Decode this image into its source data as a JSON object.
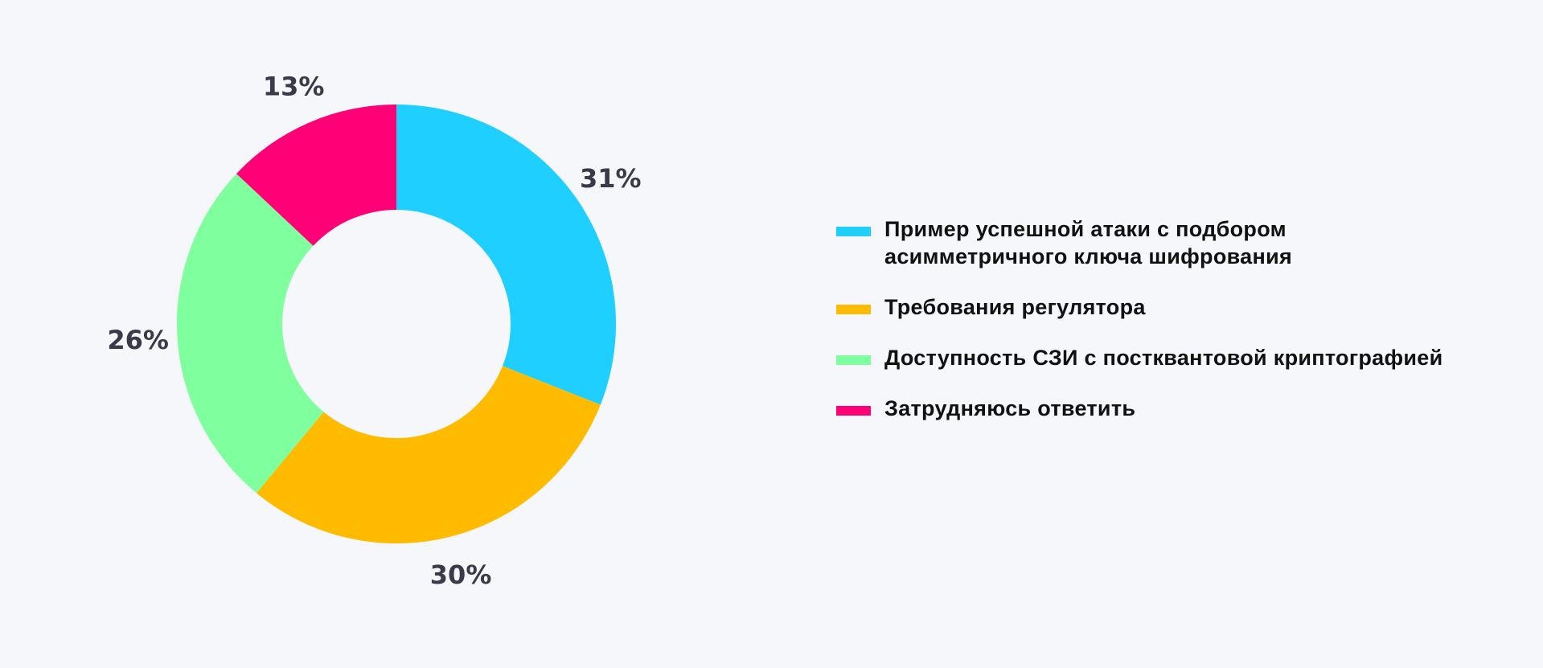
{
  "chart_data": {
    "type": "pie",
    "donut": true,
    "start": "top",
    "direction": "clockwise",
    "categories": [
      "Пример успешной атаки с подбором асимметричного ключа шифрования",
      "Требования регулятора",
      "Доступность СЗИ с постквантовой криптографией",
      "Затрудняюсь ответить"
    ],
    "values": [
      31,
      30,
      26,
      13
    ],
    "data_labels": [
      "31%",
      "30%",
      "26%",
      "13%"
    ],
    "colors": [
      "#1ecfff",
      "#ffbb00",
      "#80ff9f",
      "#ff0077"
    ],
    "legend_position": "right"
  }
}
